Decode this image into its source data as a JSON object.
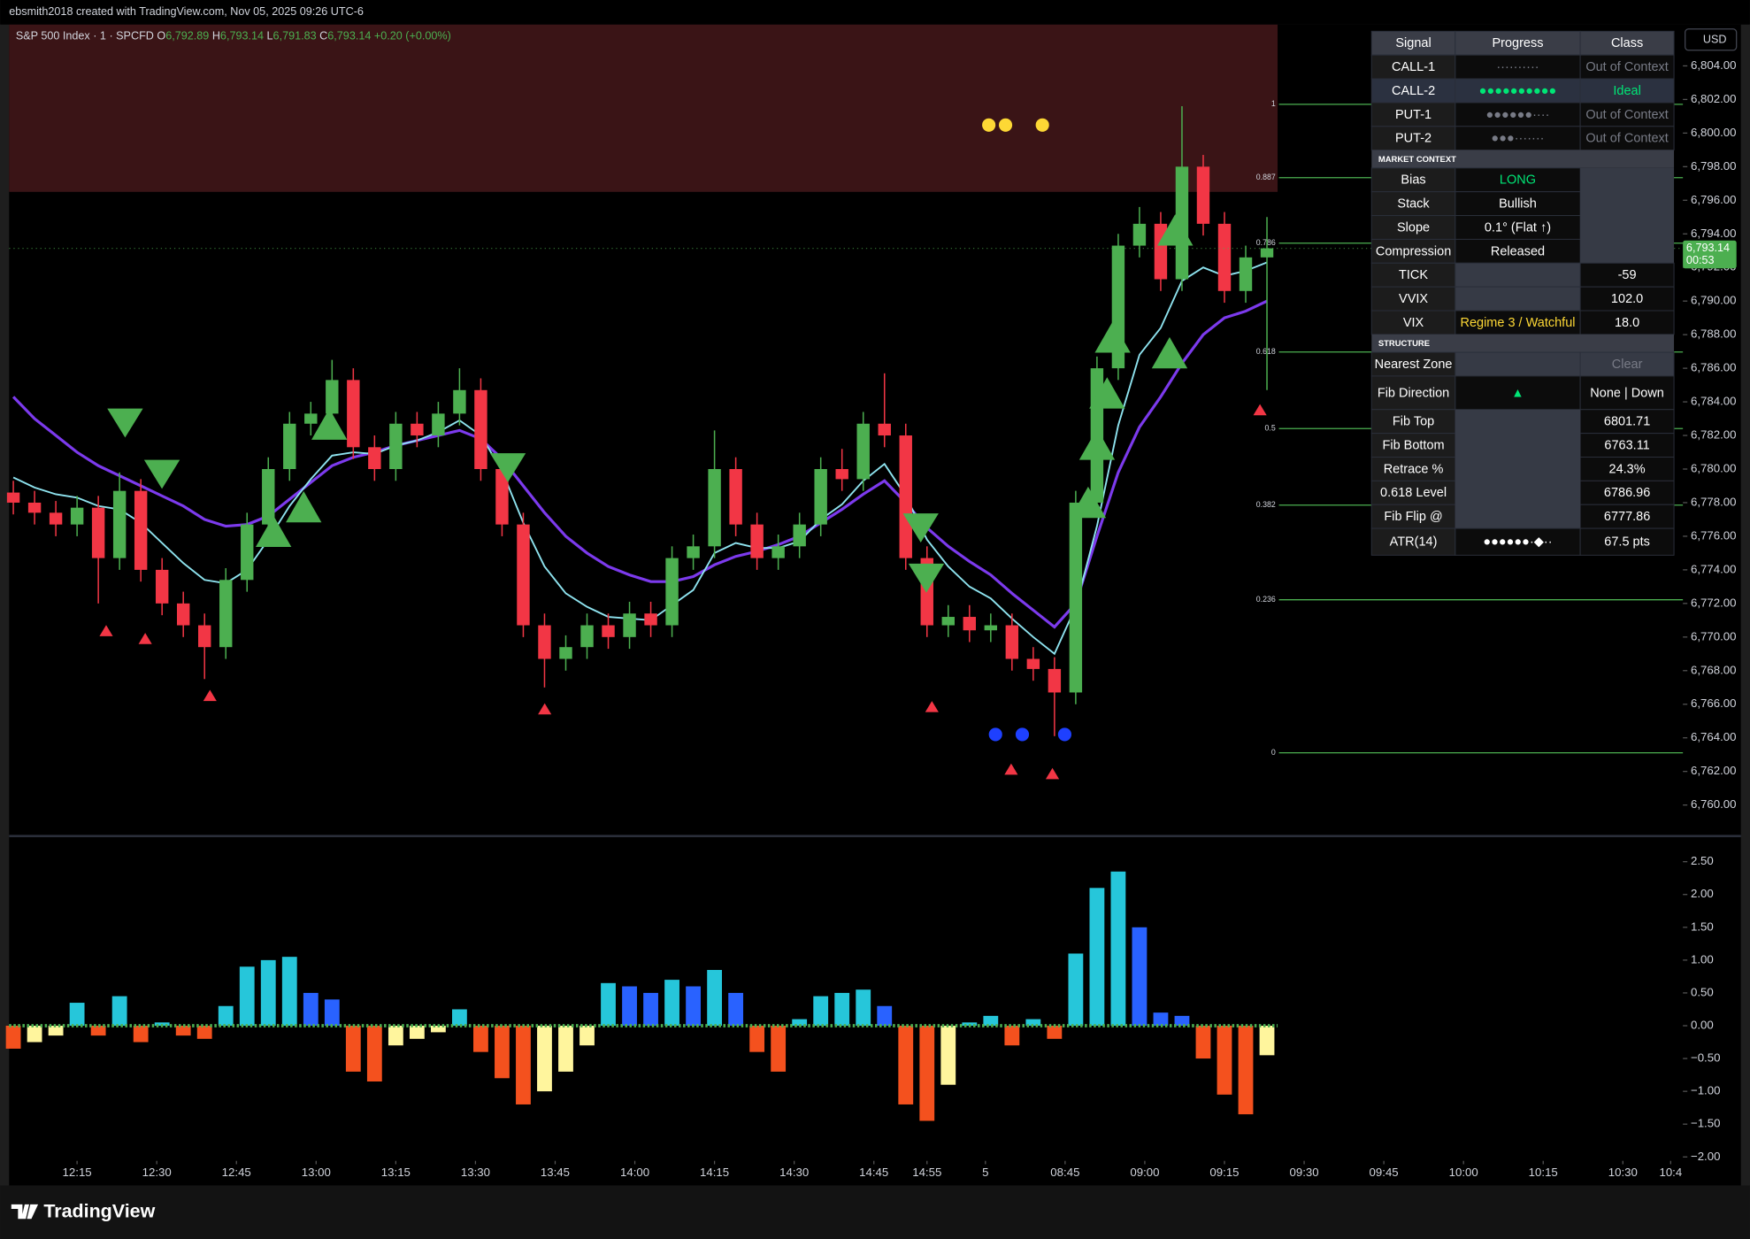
{
  "header": {
    "credit": "ebsmith2018 created with TradingView.com, Nov 05, 2025 09:26 UTC-6",
    "symbol": "S&P 500 Index · 1 · SPCFD",
    "ohlc": [
      {
        "label": "O",
        "value": "6,792.89"
      },
      {
        "label": "H",
        "value": "6,793.14"
      },
      {
        "label": "L",
        "value": "6,791.83"
      },
      {
        "label": "C",
        "value": "6,793.14"
      }
    ],
    "change": "+0.20 (+0.00%)",
    "currency": "USD",
    "last_price": "6,793.14",
    "countdown": "00:53"
  },
  "chart_data": [
    {
      "type": "candlestick",
      "x": [
        -12,
        -8,
        -4,
        0,
        4,
        8,
        12,
        16,
        20,
        24,
        28,
        32,
        36,
        40,
        44,
        48,
        52,
        56,
        60,
        64,
        68,
        72,
        76,
        80,
        84,
        88,
        92,
        96,
        100,
        104,
        108,
        112,
        116,
        120,
        124,
        128,
        132,
        136,
        140,
        144,
        148,
        152,
        156,
        160,
        164,
        168,
        172,
        176,
        180,
        184,
        188,
        192,
        196,
        200,
        204,
        208,
        212,
        216,
        220,
        224
      ],
      "open": [
        6778.6,
        6778.0,
        6777.4,
        6776.7,
        6777.7,
        6774.7,
        6778.7,
        6774.0,
        6772.0,
        6770.7,
        6769.4,
        6773.4,
        6776.7,
        6780.0,
        6782.7,
        6783.3,
        6785.3,
        6781.3,
        6780.0,
        6782.7,
        6782.0,
        6783.3,
        6784.7,
        6780.0,
        6776.7,
        6770.7,
        6768.7,
        6769.4,
        6770.7,
        6770.0,
        6771.4,
        6770.7,
        6774.7,
        6775.4,
        6780.0,
        6776.7,
        6774.7,
        6775.4,
        6776.7,
        6780.0,
        6779.4,
        6782.7,
        6782.0,
        6774.7,
        6770.7,
        6771.2,
        6770.4,
        6770.7,
        6768.7,
        6768.1,
        6766.7,
        6778.0,
        6786.0,
        6793.3,
        6794.6,
        6791.3,
        6798.0,
        6794.6,
        6790.6,
        6792.6
      ],
      "high": [
        6779.3,
        6778.7,
        6778.1,
        6778.4,
        6778.4,
        6779.8,
        6779.4,
        6774.7,
        6772.7,
        6771.4,
        6774.1,
        6777.4,
        6780.7,
        6783.4,
        6784.0,
        6786.5,
        6786.0,
        6782.0,
        6783.4,
        6783.4,
        6784.0,
        6786.0,
        6785.4,
        6780.7,
        6777.4,
        6771.4,
        6770.1,
        6771.4,
        6771.4,
        6772.1,
        6772.1,
        6775.4,
        6776.1,
        6782.3,
        6780.7,
        6777.4,
        6776.1,
        6777.4,
        6780.7,
        6781.2,
        6783.4,
        6785.7,
        6782.7,
        6775.4,
        6771.9,
        6771.9,
        6771.4,
        6771.4,
        6769.4,
        6768.8,
        6778.7,
        6786.7,
        6794.0,
        6795.6,
        6795.3,
        6801.6,
        6798.7,
        6795.3,
        6793.3,
        6795.0
      ],
      "low": [
        6777.3,
        6776.7,
        6776.0,
        6776.0,
        6772.0,
        6774.0,
        6773.3,
        6771.3,
        6770.0,
        6767.5,
        6768.7,
        6772.7,
        6776.0,
        6779.3,
        6782.0,
        6782.6,
        6780.6,
        6779.3,
        6779.3,
        6781.3,
        6781.3,
        6782.6,
        6779.3,
        6776.0,
        6770.0,
        6767.0,
        6768.0,
        6768.7,
        6769.3,
        6769.3,
        6770.0,
        6770.0,
        6774.0,
        6774.7,
        6776.0,
        6774.0,
        6774.0,
        6774.7,
        6776.0,
        6778.7,
        6778.7,
        6781.3,
        6774.0,
        6770.0,
        6770.0,
        6769.7,
        6769.7,
        6768.0,
        6767.4,
        6764.1,
        6766.0,
        6777.3,
        6785.3,
        6792.6,
        6790.6,
        6790.6,
        6793.9,
        6789.9,
        6789.9,
        6784.7
      ],
      "close": [
        6778.0,
        6777.4,
        6776.7,
        6777.7,
        6774.7,
        6778.7,
        6774.0,
        6772.0,
        6770.7,
        6769.4,
        6773.4,
        6776.7,
        6780.0,
        6782.7,
        6783.3,
        6785.3,
        6781.3,
        6780.0,
        6782.7,
        6782.0,
        6783.3,
        6784.7,
        6780.0,
        6776.7,
        6770.7,
        6768.7,
        6769.4,
        6770.7,
        6770.0,
        6771.4,
        6770.7,
        6774.7,
        6775.4,
        6780.0,
        6776.7,
        6774.7,
        6775.4,
        6776.7,
        6780.0,
        6779.4,
        6782.7,
        6782.0,
        6774.7,
        6770.7,
        6771.2,
        6770.4,
        6770.7,
        6768.7,
        6768.1,
        6766.7,
        6778.0,
        6786.0,
        6793.3,
        6794.6,
        6791.3,
        6798.0,
        6794.6,
        6790.6,
        6792.6,
        6793.14
      ],
      "colors": {
        "up": "#4caf50",
        "down": "#f23645"
      },
      "lines": [
        {
          "color": "#7c3aed",
          "values": [
            6784.3,
            6783.0,
            6782.0,
            6781.0,
            6780.2,
            6779.6,
            6779.0,
            6778.4,
            6777.8,
            6777.0,
            6776.6,
            6776.7,
            6777.2,
            6778.2,
            6779.2,
            6780.2,
            6780.7,
            6781.0,
            6781.4,
            6781.7,
            6782.0,
            6782.3,
            6781.8,
            6780.6,
            6779.0,
            6777.4,
            6776.0,
            6775.0,
            6774.2,
            6773.7,
            6773.3,
            6773.3,
            6773.6,
            6774.3,
            6774.8,
            6775.1,
            6775.5,
            6776.0,
            6776.8,
            6777.6,
            6778.5,
            6779.3,
            6778.0,
            6776.5,
            6775.4,
            6774.5,
            6773.7,
            6772.6,
            6771.6,
            6770.6,
            6772.0,
            6776.0,
            6779.8,
            6782.5,
            6784.3,
            6786.3,
            6788.0,
            6789.0,
            6789.4,
            6790.0
          ]
        },
        {
          "color": "#8ee3ef",
          "values": [
            6779.5,
            6778.9,
            6778.5,
            6778.3,
            6777.8,
            6777.6,
            6776.8,
            6775.6,
            6774.4,
            6773.4,
            6773.2,
            6774.0,
            6775.8,
            6777.8,
            6779.4,
            6780.8,
            6781.0,
            6780.9,
            6781.4,
            6781.7,
            6782.2,
            6782.9,
            6782.0,
            6779.9,
            6776.8,
            6774.2,
            6772.6,
            6771.8,
            6771.2,
            6771.1,
            6771.0,
            6771.9,
            6772.8,
            6775.0,
            6775.6,
            6775.3,
            6775.3,
            6775.7,
            6777.0,
            6777.9,
            6779.3,
            6780.3,
            6778.4,
            6775.8,
            6774.2,
            6773.0,
            6772.3,
            6771.1,
            6770.0,
            6769.0,
            6771.8,
            6776.6,
            6782.6,
            6786.8,
            6788.4,
            6791.2,
            6792.0,
            6791.5,
            6791.8,
            6792.3
          ]
        }
      ],
      "zone": {
        "color": "#3a1416",
        "range": [
          6796.5,
          6806.46
        ]
      },
      "fib": {
        "top": 6801.71,
        "bottom": 6763.11,
        "levels": [
          1,
          0.887,
          0.786,
          0.618,
          0.5,
          0.382,
          0.236,
          0
        ],
        "color": "#4caf50"
      },
      "xlim": [
        -12.8,
        302.3
      ],
      "xticks": [
        {
          "value": 0,
          "label": "12:15"
        },
        {
          "value": 15,
          "label": "12:30"
        },
        {
          "value": 30,
          "label": "12:45"
        },
        {
          "value": 45,
          "label": "13:00"
        },
        {
          "value": 60,
          "label": "13:15"
        },
        {
          "value": 75,
          "label": "13:30"
        },
        {
          "value": 90,
          "label": "13:45"
        },
        {
          "value": 105,
          "label": "14:00"
        },
        {
          "value": 120,
          "label": "14:15"
        },
        {
          "value": 135,
          "label": "14:30"
        },
        {
          "value": 150,
          "label": "14:45"
        },
        {
          "value": 160,
          "label": "14:55"
        },
        {
          "value": 171,
          "label": "5"
        },
        {
          "value": 186,
          "label": "08:45"
        },
        {
          "value": 201,
          "label": "09:00"
        },
        {
          "value": 216,
          "label": "09:15"
        },
        {
          "value": 231,
          "label": "09:30"
        },
        {
          "value": 246,
          "label": "09:45"
        },
        {
          "value": 261,
          "label": "10:00"
        },
        {
          "value": 276,
          "label": "10:15"
        },
        {
          "value": 291,
          "label": "10:30"
        },
        {
          "value": 300,
          "label": "10:4"
        }
      ],
      "ylim": [
        6758.22,
        6806.46
      ],
      "yticks": [
        {
          "value": 6760,
          "label": "6,760.00"
        },
        {
          "value": 6762,
          "label": "6,762.00"
        },
        {
          "value": 6764,
          "label": "6,764.00"
        },
        {
          "value": 6766,
          "label": "6,766.00"
        },
        {
          "value": 6768,
          "label": "6,768.00"
        },
        {
          "value": 6770,
          "label": "6,770.00"
        },
        {
          "value": 6772,
          "label": "6,772.00"
        },
        {
          "value": 6774,
          "label": "6,774.00"
        },
        {
          "value": 6776,
          "label": "6,776.00"
        },
        {
          "value": 6778,
          "label": "6,778.00"
        },
        {
          "value": 6780,
          "label": "6,780.00"
        },
        {
          "value": 6782,
          "label": "6,782.00"
        },
        {
          "value": 6784,
          "label": "6,784.00"
        },
        {
          "value": 6786,
          "label": "6,786.00"
        },
        {
          "value": 6788,
          "label": "6,788.00"
        },
        {
          "value": 6790,
          "label": "6,790.00"
        },
        {
          "value": 6792,
          "label": "6,792.00"
        },
        {
          "value": 6794,
          "label": "6,794.00"
        },
        {
          "value": 6796,
          "label": "6,796.00"
        },
        {
          "value": 6798,
          "label": "6,798.00"
        },
        {
          "value": 6800,
          "label": "6,800.00"
        },
        {
          "value": 6802,
          "label": "6,802.00"
        },
        {
          "value": 6804,
          "label": "6,804.00"
        }
      ]
    },
    {
      "type": "bar",
      "values": [
        -0.35,
        -0.25,
        -0.15,
        0.35,
        -0.15,
        0.45,
        -0.25,
        0.05,
        -0.15,
        -0.2,
        0.3,
        0.9,
        1.0,
        1.05,
        0.5,
        0.4,
        -0.7,
        -0.85,
        -0.3,
        -0.2,
        -0.1,
        0.25,
        -0.4,
        -0.8,
        -1.2,
        -1.0,
        -0.7,
        -0.3,
        0.65,
        0.6,
        0.5,
        0.7,
        0.6,
        0.85,
        0.5,
        -0.4,
        -0.7,
        0.1,
        0.45,
        0.5,
        0.55,
        0.3,
        -1.2,
        -1.45,
        -0.9,
        0.05,
        0.15,
        -0.3,
        0.1,
        -0.2,
        1.1,
        2.1,
        2.35,
        1.5,
        0.2,
        0.15,
        -0.5,
        -1.05,
        -1.35,
        -0.45
      ],
      "palette": {
        "pos_rising": "#26c6da",
        "pos_falling": "#2962ff",
        "neg_falling": "#f4511e",
        "neg_rising": "#fff59d"
      },
      "ylim": [
        -2.06,
        2.84
      ],
      "yticks": [
        {
          "value": 2.5,
          "label": "2.50"
        },
        {
          "value": 2,
          "label": "2.00"
        },
        {
          "value": 1.5,
          "label": "1.50"
        },
        {
          "value": 1,
          "label": "1.00"
        },
        {
          "value": 0.5,
          "label": "0.50"
        },
        {
          "value": 0,
          "label": "0.00"
        },
        {
          "value": -0.5,
          "label": "−0.50"
        },
        {
          "value": -1,
          "label": "−1.00"
        },
        {
          "value": -1.5,
          "label": "−1.50"
        },
        {
          "value": -2,
          "label": "−2.00"
        }
      ]
    }
  ],
  "table": {
    "header": [
      "Signal",
      "Progress",
      "Class"
    ],
    "signals": [
      {
        "name": "CALL-1",
        "progress": "··········",
        "class": "Out of Context",
        "color": "#787b86"
      },
      {
        "name": "CALL-2",
        "progress": "●●●●●●●●●●",
        "class": "Ideal",
        "color": "#00e676"
      },
      {
        "name": "PUT-1",
        "progress": "●●●●●●····",
        "class": "Out of Context",
        "color": "#787b86"
      },
      {
        "name": "PUT-2",
        "progress": "●●●·······",
        "class": "Out of Context",
        "color": "#787b86"
      }
    ],
    "market_context": {
      "title": "MARKET CONTEXT",
      "rows": [
        {
          "label": "Bias",
          "value": "LONG",
          "color": "#00e676"
        },
        {
          "label": "Stack",
          "value": "Bullish"
        },
        {
          "label": "Slope",
          "value": "0.1° (Flat ↑)"
        },
        {
          "label": "Compression",
          "value": "Released"
        }
      ]
    },
    "internals": [
      {
        "label": "TICK",
        "value": "-59"
      },
      {
        "label": "VVIX",
        "value": "102.0"
      },
      {
        "label": "VIX",
        "regime": "Regime 3 / Watchful",
        "regime_color": "#fdd835",
        "value": "18.0"
      }
    ],
    "structure": {
      "title": "STRUCTURE",
      "nearest_zone": {
        "label": "Nearest Zone",
        "value": "Clear"
      },
      "fib_direction": {
        "label": "Fib Direction",
        "arrow": "▲",
        "arrow_color": "#00e676",
        "value": "None | Down"
      },
      "fib_rows": [
        {
          "label": "Fib Top"
        },
        {
          "label": "Fib Bottom"
        },
        {
          "label": "Retrace %",
          "value": "24.3%"
        },
        {
          "label": "0.618 Level",
          "value": "6786.96"
        },
        {
          "label": "Fib Flip @",
          "value": "6777.86"
        }
      ]
    },
    "atr": {
      "label": "ATR(14)",
      "progress": "●●●●●●·◆··",
      "value": "67.5 pts"
    }
  },
  "footer": {
    "brand": "TradingView"
  }
}
